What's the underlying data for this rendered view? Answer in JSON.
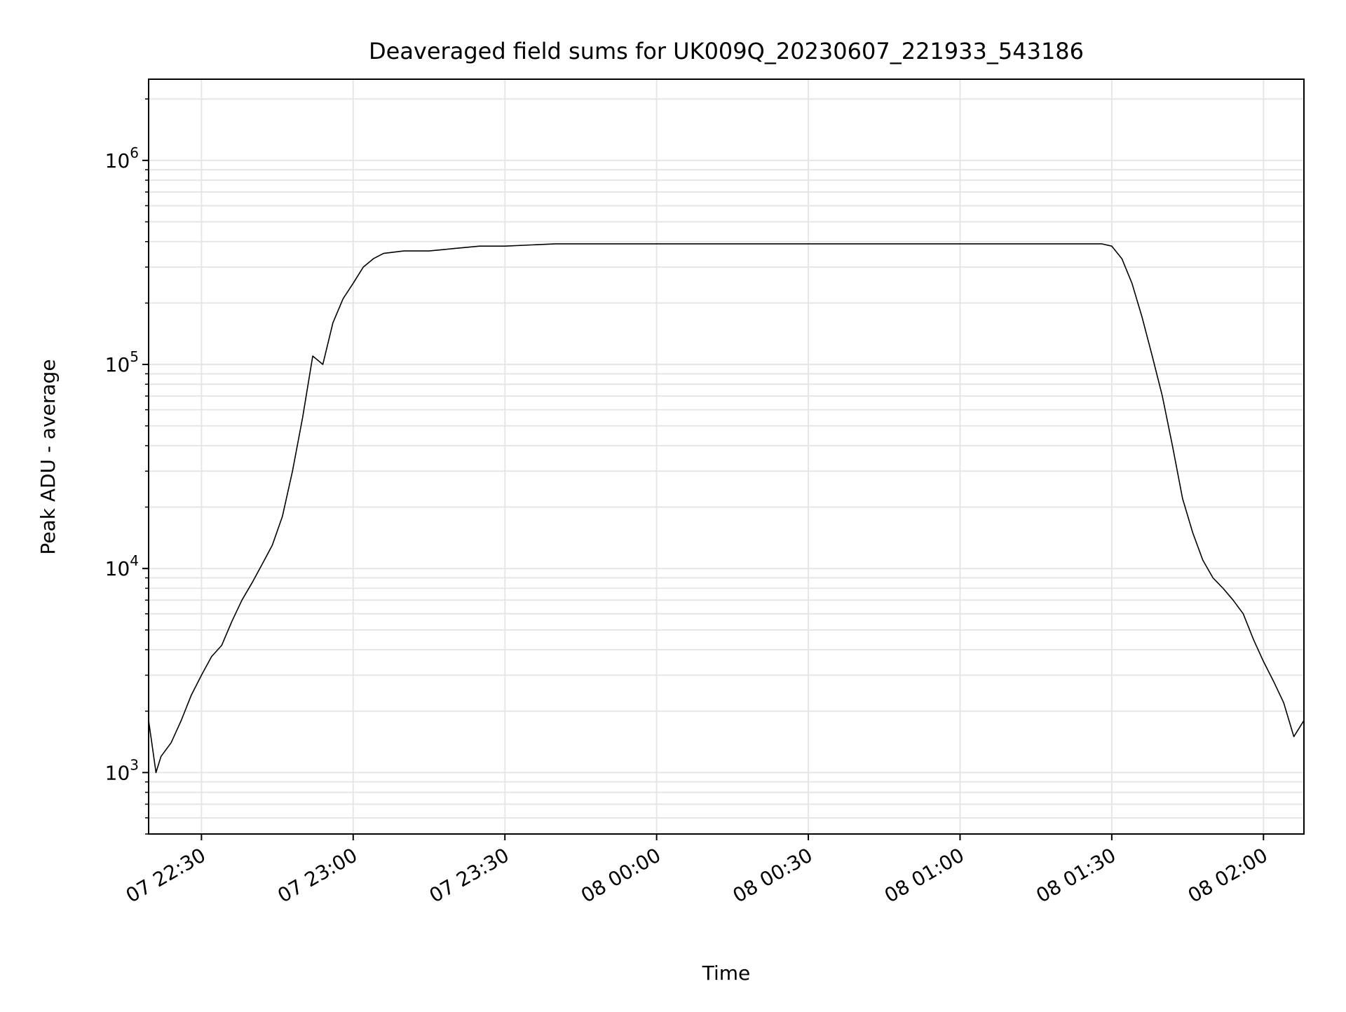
{
  "chart_data": {
    "type": "line",
    "title": "Deaveraged field sums for UK009Q_20230607_221933_543186",
    "xlabel": "Time",
    "ylabel": "Peak ADU - average",
    "yscale": "log",
    "ylim": [
      500,
      2500000
    ],
    "xlim": [
      "2023-06-07 22:19:33",
      "2023-06-08 02:08:00"
    ],
    "grid": true,
    "x_ticks": [
      {
        "label": "07 22:30",
        "value": "2023-06-07 22:30:00"
      },
      {
        "label": "07 23:00",
        "value": "2023-06-07 23:00:00"
      },
      {
        "label": "07 23:30",
        "value": "2023-06-07 23:30:00"
      },
      {
        "label": "08 00:00",
        "value": "2023-06-08 00:00:00"
      },
      {
        "label": "08 00:30",
        "value": "2023-06-08 00:30:00"
      },
      {
        "label": "08 01:00",
        "value": "2023-06-08 01:00:00"
      },
      {
        "label": "08 01:30",
        "value": "2023-06-08 01:30:00"
      },
      {
        "label": "08 02:00",
        "value": "2023-06-08 02:00:00"
      }
    ],
    "y_ticks": [
      {
        "base": "10",
        "exp": "3",
        "value": 1000
      },
      {
        "base": "10",
        "exp": "4",
        "value": 10000
      },
      {
        "base": "10",
        "exp": "5",
        "value": 100000
      },
      {
        "base": "10",
        "exp": "6",
        "value": 1000000
      }
    ],
    "series": [
      {
        "color": "#000000",
        "x": [
          "2023-06-07 22:19:33",
          "2023-06-07 22:21:00",
          "2023-06-07 22:22:00",
          "2023-06-07 22:24:00",
          "2023-06-07 22:26:00",
          "2023-06-07 22:28:00",
          "2023-06-07 22:30:00",
          "2023-06-07 22:32:00",
          "2023-06-07 22:34:00",
          "2023-06-07 22:36:00",
          "2023-06-07 22:38:00",
          "2023-06-07 22:40:00",
          "2023-06-07 22:42:00",
          "2023-06-07 22:44:00",
          "2023-06-07 22:46:00",
          "2023-06-07 22:48:00",
          "2023-06-07 22:50:00",
          "2023-06-07 22:52:00",
          "2023-06-07 22:54:00",
          "2023-06-07 22:56:00",
          "2023-06-07 22:58:00",
          "2023-06-07 23:00:00",
          "2023-06-07 23:02:00",
          "2023-06-07 23:04:00",
          "2023-06-07 23:06:00",
          "2023-06-07 23:10:00",
          "2023-06-07 23:15:00",
          "2023-06-07 23:20:00",
          "2023-06-07 23:25:00",
          "2023-06-07 23:30:00",
          "2023-06-07 23:40:00",
          "2023-06-07 23:50:00",
          "2023-06-08 00:00:00",
          "2023-06-08 00:10:00",
          "2023-06-08 00:20:00",
          "2023-06-08 00:30:00",
          "2023-06-08 00:40:00",
          "2023-06-08 00:50:00",
          "2023-06-08 01:00:00",
          "2023-06-08 01:10:00",
          "2023-06-08 01:20:00",
          "2023-06-08 01:25:00",
          "2023-06-08 01:28:00",
          "2023-06-08 01:30:00",
          "2023-06-08 01:32:00",
          "2023-06-08 01:34:00",
          "2023-06-08 01:36:00",
          "2023-06-08 01:38:00",
          "2023-06-08 01:40:00",
          "2023-06-08 01:42:00",
          "2023-06-08 01:44:00",
          "2023-06-08 01:46:00",
          "2023-06-08 01:48:00",
          "2023-06-08 01:50:00",
          "2023-06-08 01:52:00",
          "2023-06-08 01:54:00",
          "2023-06-08 01:56:00",
          "2023-06-08 01:58:00",
          "2023-06-08 02:00:00",
          "2023-06-08 02:02:00",
          "2023-06-08 02:04:00",
          "2023-06-08 02:06:00",
          "2023-06-08 02:08:00"
        ],
        "values": [
          1800,
          1000,
          1200,
          1400,
          1800,
          2400,
          3000,
          3700,
          4200,
          5500,
          7000,
          8500,
          10500,
          13000,
          18000,
          30000,
          55000,
          110000,
          100000,
          160000,
          210000,
          250000,
          300000,
          330000,
          350000,
          360000,
          360000,
          370000,
          380000,
          380000,
          390000,
          390000,
          390000,
          390000,
          390000,
          390000,
          390000,
          390000,
          390000,
          390000,
          390000,
          390000,
          390000,
          380000,
          330000,
          250000,
          170000,
          110000,
          70000,
          40000,
          22000,
          15000,
          11000,
          9000,
          8000,
          7000,
          6000,
          4500,
          3500,
          2800,
          2200,
          1500,
          1800
        ]
      }
    ]
  }
}
